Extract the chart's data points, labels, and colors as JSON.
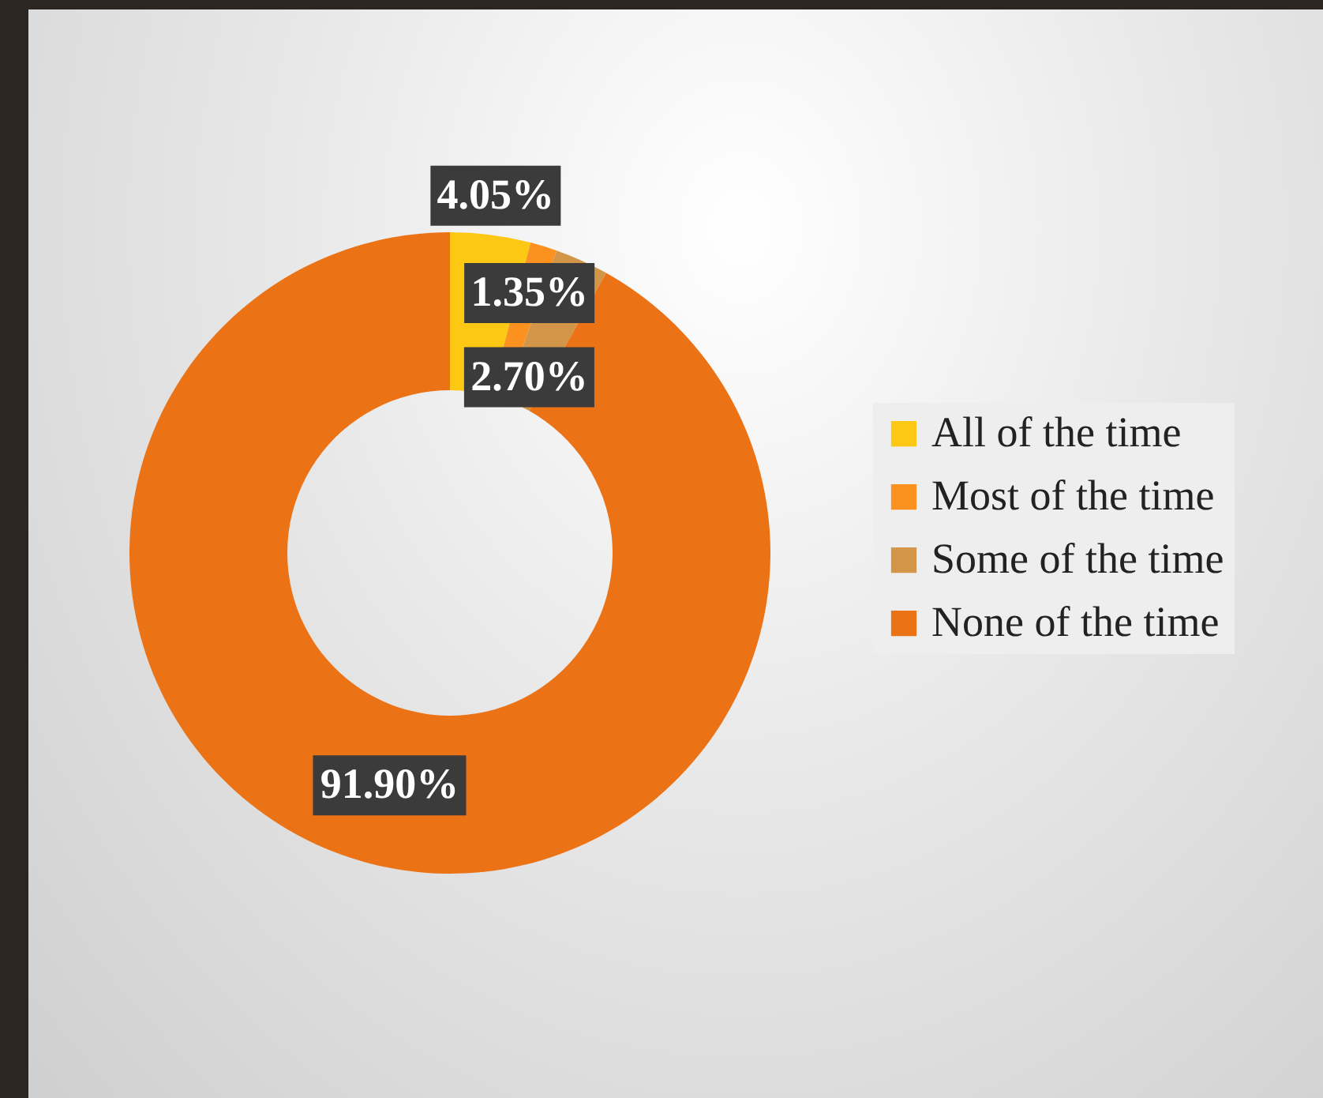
{
  "chart_data": {
    "type": "donut",
    "categories": [
      "All of the time",
      "Most of the time",
      "Some of the time",
      "None of the time"
    ],
    "values": [
      4.05,
      1.35,
      2.7,
      91.9
    ],
    "colors": [
      "#fcc813",
      "#fb921f",
      "#d39547",
      "#ec7216"
    ],
    "value_labels": [
      "4.05%",
      "1.35%",
      "2.70%",
      "91.90%"
    ],
    "legend": "right"
  }
}
